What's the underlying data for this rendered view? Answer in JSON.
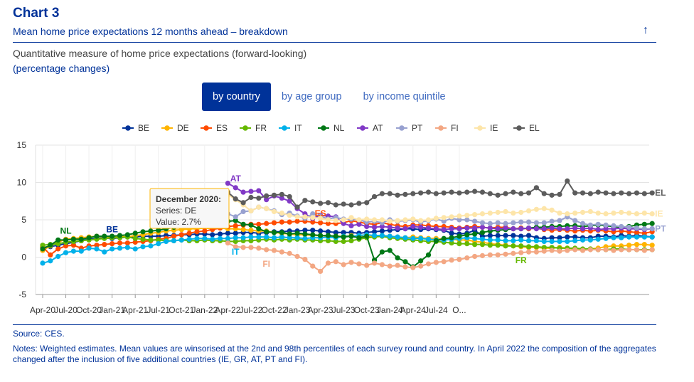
{
  "header": {
    "chart_number": "Chart 3",
    "title": "Mean home price expectations 12 months ahead – breakdown",
    "subtitle": "Quantitative measure of home price expectations (forward-looking)",
    "unit": "(percentage changes)"
  },
  "tabs": [
    {
      "label": "by country",
      "active": true
    },
    {
      "label": "by age group",
      "active": false
    },
    {
      "label": "by income quintile",
      "active": false
    }
  ],
  "tooltip": {
    "title": "December 2020:",
    "series_line": "Series: DE",
    "value_line": "Value: 2.7%"
  },
  "footer": {
    "source": "Source: CES.",
    "notes": "Notes: Weighted estimates. Mean values are winsorised at the 2nd and 98th percentiles of each survey round and country. In April 2022 the composition of the aggregates changed after the inclusion of five additional countries (IE, GR, AT, PT and FI)."
  },
  "chart_data": {
    "type": "line",
    "title": "",
    "xlabel": "",
    "ylabel": "",
    "ylim": [
      -5,
      15
    ],
    "yticks": [
      -5,
      0,
      5,
      10,
      15
    ],
    "grid": true,
    "legend_position": "top",
    "x_start": "Apr-20",
    "x_tick_labels": [
      "Apr-20",
      "Jul-20",
      "Oct-20",
      "Jan-21",
      "Apr-21",
      "Jul-21",
      "Oct-21",
      "Jan-22",
      "Apr-22",
      "Jul-22",
      "Oct-22",
      "Jan-23",
      "Apr-23",
      "Jul-23",
      "Oct-23",
      "Jan-24",
      "Apr-24",
      "Jul-24",
      "O..."
    ],
    "x_tick_step_months": 3,
    "series": [
      {
        "name": "BE",
        "color": "#003299",
        "start": 0,
        "label": "BE",
        "label_at": 9,
        "values": [
          1.3,
          1.4,
          1.6,
          1.8,
          2.0,
          2.2,
          2.4,
          2.5,
          2.6,
          2.5,
          2.6,
          2.7,
          2.7,
          2.8,
          2.8,
          2.8,
          2.9,
          2.9,
          3.0,
          3.0,
          3.1,
          3.1,
          3.0,
          3.1,
          3.2,
          3.2,
          3.3,
          3.3,
          3.2,
          3.3,
          3.4,
          3.4,
          3.5,
          3.5,
          3.6,
          3.6,
          3.5,
          3.4,
          3.3,
          3.3,
          3.3,
          3.2,
          3.3,
          3.4,
          3.5,
          3.6,
          3.7,
          3.8,
          3.8,
          3.7,
          3.8,
          3.7,
          3.6,
          3.2,
          3.1,
          3.2,
          3.6,
          2.8,
          2.9,
          2.9,
          2.9,
          2.9,
          2.8,
          2.9,
          2.6,
          2.5,
          2.6,
          2.6,
          2.7,
          2.7,
          2.6,
          2.6,
          2.8,
          2.8,
          2.7,
          2.9,
          2.8,
          2.9,
          2.8,
          2.7
        ]
      },
      {
        "name": "DE",
        "color": "#ffb400",
        "start": 0,
        "values": [
          0.9,
          1.5,
          2.0,
          2.4,
          2.5,
          2.6,
          2.7,
          2.8,
          2.7,
          2.7,
          2.8,
          2.7,
          2.9,
          3.0,
          3.2,
          3.3,
          3.5,
          3.6,
          3.7,
          3.8,
          3.8,
          3.9,
          3.8,
          3.9,
          3.8,
          3.8,
          3.7,
          3.6,
          3.5,
          3.5,
          3.3,
          3.2,
          3.1,
          3.0,
          3.0,
          2.9,
          2.9,
          2.8,
          2.8,
          2.8,
          2.9,
          2.8,
          2.7,
          2.8,
          2.9,
          2.8,
          2.7,
          2.6,
          2.7,
          2.6,
          2.5,
          2.5,
          2.4,
          2.4,
          2.3,
          2.3,
          2.1,
          2.0,
          1.8,
          1.7,
          1.6,
          1.5,
          1.4,
          1.3,
          1.3,
          1.2,
          1.2,
          1.3,
          1.2,
          1.1,
          1.0,
          1.1,
          1.2,
          1.4,
          1.5,
          1.5,
          1.6,
          1.7,
          1.7,
          1.6
        ]
      },
      {
        "name": "ES",
        "color": "#ff4b00",
        "start": 0,
        "label": "ES",
        "label_at": 36,
        "values": [
          1.4,
          0.3,
          1.1,
          1.5,
          1.6,
          1.2,
          1.5,
          1.6,
          1.7,
          1.8,
          1.9,
          1.9,
          2.0,
          2.1,
          2.2,
          2.4,
          2.5,
          2.8,
          3.0,
          3.2,
          3.4,
          3.5,
          3.7,
          3.9,
          4.1,
          4.2,
          4.3,
          4.4,
          4.4,
          4.5,
          4.6,
          4.7,
          4.7,
          4.8,
          4.8,
          4.7,
          4.6,
          4.5,
          4.5,
          4.6,
          4.9,
          4.7,
          4.5,
          4.4,
          4.6,
          4.4,
          4.2,
          4.1,
          4.3,
          4.3,
          4.2,
          4.1,
          4.1,
          4.0,
          3.9,
          4.0,
          4.1,
          4.0,
          3.9,
          4.0,
          4.0,
          3.8,
          3.9,
          3.8,
          3.9,
          3.7,
          3.6,
          3.7,
          3.6,
          3.5,
          3.6,
          3.5,
          3.6,
          3.5,
          3.4,
          3.5,
          3.4,
          3.3,
          3.2,
          3.4
        ]
      },
      {
        "name": "FR",
        "color": "#65b800",
        "start": 0,
        "label": "FR",
        "label_at": 62,
        "values": [
          1.6,
          1.7,
          1.8,
          2.0,
          2.1,
          2.2,
          2.3,
          2.4,
          2.5,
          2.6,
          2.6,
          2.7,
          2.5,
          2.4,
          2.3,
          2.3,
          2.2,
          2.2,
          2.3,
          2.2,
          2.2,
          2.3,
          2.2,
          2.2,
          2.1,
          2.1,
          2.2,
          2.2,
          2.3,
          2.4,
          2.3,
          2.4,
          2.3,
          2.4,
          2.3,
          2.3,
          2.2,
          2.2,
          2.1,
          2.1,
          2.2,
          2.4,
          2.6,
          2.7,
          2.8,
          2.6,
          2.5,
          2.4,
          2.3,
          2.2,
          2.1,
          2.1,
          2.0,
          1.9,
          1.8,
          1.8,
          1.7,
          1.7,
          1.6,
          1.6,
          1.5,
          1.5,
          1.5,
          1.4,
          1.4,
          1.3,
          1.3,
          1.2,
          1.2,
          1.2,
          1.1,
          1.1,
          1.0,
          1.0,
          1.1,
          1.1,
          1.0,
          1.0,
          1.0,
          1.0
        ]
      },
      {
        "name": "IT",
        "color": "#00b1ea",
        "start": 0,
        "label": "IT",
        "label_at": 25,
        "values": [
          -0.8,
          -0.5,
          0.1,
          0.6,
          0.8,
          0.8,
          1.2,
          1.1,
          0.7,
          1.1,
          1.2,
          1.3,
          1.1,
          1.4,
          1.5,
          1.8,
          2.1,
          2.2,
          2.3,
          2.4,
          2.5,
          2.5,
          2.4,
          2.5,
          2.5,
          2.6,
          2.6,
          2.7,
          2.7,
          2.7,
          2.6,
          2.7,
          2.6,
          2.6,
          2.5,
          2.6,
          2.6,
          2.7,
          2.6,
          2.8,
          2.8,
          2.9,
          3.0,
          2.9,
          2.9,
          2.8,
          2.7,
          2.6,
          2.5,
          2.5,
          2.4,
          2.3,
          2.3,
          2.4,
          2.5,
          2.6,
          2.5,
          2.4,
          2.3,
          2.3,
          2.2,
          2.2,
          2.3,
          2.2,
          2.2,
          2.1,
          2.1,
          2.1,
          2.1,
          2.2,
          2.3,
          2.3,
          2.4,
          2.5,
          2.6,
          2.6,
          2.7,
          2.7,
          2.7,
          2.7
        ]
      },
      {
        "name": "NL",
        "color": "#007816",
        "start": 0,
        "label": "NL",
        "label_at": 3,
        "values": [
          1.1,
          1.6,
          2.3,
          2.3,
          2.4,
          2.4,
          2.6,
          2.8,
          2.8,
          2.8,
          2.9,
          3.0,
          3.2,
          3.4,
          3.5,
          3.6,
          3.8,
          4.0,
          4.2,
          4.4,
          4.6,
          5.4,
          4.8,
          4.4,
          4.8,
          4.9,
          4.4,
          4.3,
          3.8,
          3.4,
          3.3,
          3.3,
          3.1,
          3.2,
          3.1,
          3.0,
          2.9,
          2.9,
          2.8,
          2.7,
          2.8,
          2.6,
          2.8,
          -0.4,
          0.7,
          0.9,
          -0.1,
          -0.6,
          -1.3,
          -0.5,
          0.3,
          2.2,
          2.5,
          2.6,
          2.8,
          3.0,
          3.1,
          3.3,
          3.5,
          3.6,
          3.7,
          3.8,
          3.8,
          3.9,
          4.0,
          4.0,
          4.1,
          4.1,
          4.2,
          4.2,
          4.1,
          4.2,
          4.3,
          4.2,
          4.1,
          4.0,
          4.1,
          4.3,
          4.4,
          4.5
        ]
      },
      {
        "name": "AT",
        "color": "#8139c6",
        "start": 24,
        "label": "AT",
        "label_at": 25,
        "values": [
          9.9,
          9.3,
          8.7,
          8.8,
          8.9,
          7.7,
          8.2,
          7.9,
          7.5,
          6.5,
          5.8,
          5.2,
          5.6,
          5.5,
          5.4,
          4.5,
          4.2,
          4.4,
          4.1,
          4.0,
          4.1,
          4.0,
          3.9,
          3.8,
          4.1,
          4.0,
          3.9,
          3.8,
          3.7,
          3.8,
          3.8,
          3.9,
          3.9,
          4.0,
          3.9,
          3.8,
          3.9,
          3.8,
          3.8,
          3.9,
          3.8,
          3.8,
          3.9,
          3.8,
          3.8,
          3.9,
          3.8,
          3.9,
          3.7,
          3.8,
          3.8,
          3.9,
          3.8,
          3.8,
          3.7,
          3.8
        ]
      },
      {
        "name": "PT",
        "color": "#98a1d0",
        "start": 24,
        "label": "PT",
        "label_at": 79,
        "values": [
          5.8,
          5.4,
          6.1,
          6.2,
          6.7,
          6.5,
          6.2,
          5.7,
          5.9,
          5.5,
          5.2,
          5.8,
          5.5,
          5.1,
          5.3,
          5.1,
          5.1,
          5.0,
          4.7,
          4.8,
          4.6,
          5.0,
          4.8,
          4.9,
          5.0,
          4.7,
          4.9,
          5.1,
          4.8,
          5.2,
          5.0,
          5.0,
          4.8,
          4.6,
          4.5,
          4.6,
          4.5,
          4.6,
          4.7,
          4.7,
          4.6,
          4.6,
          4.8,
          4.9,
          5.4,
          4.9,
          4.5,
          4.3,
          4.4,
          4.3,
          4.2,
          4.1,
          4.0,
          3.9,
          3.8,
          3.8
        ]
      },
      {
        "name": "FI",
        "color": "#f3a783",
        "start": 24,
        "label": "FI",
        "label_at": 29,
        "values": [
          1.9,
          1.4,
          1.3,
          1.3,
          1.2,
          1.0,
          0.9,
          0.7,
          0.5,
          0.1,
          -0.3,
          -1.2,
          -1.9,
          -0.8,
          -0.6,
          -1.0,
          -0.7,
          -0.9,
          -1.1,
          -0.8,
          -1.0,
          -1.2,
          -1.1,
          -1.3,
          -1.4,
          -1.2,
          -0.9,
          -0.7,
          -0.6,
          -0.4,
          -0.3,
          -0.1,
          0.1,
          0.2,
          0.3,
          0.3,
          0.4,
          0.5,
          0.6,
          0.7,
          0.7,
          0.8,
          0.9,
          0.8,
          0.9,
          1.0,
          0.9,
          1.0,
          1.0,
          1.0,
          0.9,
          1.0,
          1.0,
          1.0,
          0.9,
          1.0
        ]
      },
      {
        "name": "IE",
        "color": "#fde5a9",
        "start": 24,
        "label": "IE",
        "label_at": 79,
        "values": [
          8.4,
          7.7,
          7.0,
          6.2,
          6.7,
          6.5,
          6.1,
          5.9,
          5.6,
          5.4,
          5.4,
          5.3,
          5.2,
          5.0,
          4.9,
          5.0,
          5.3,
          5.0,
          5.1,
          5.0,
          5.0,
          4.8,
          4.9,
          5.0,
          5.1,
          4.9,
          5.0,
          5.2,
          5.3,
          5.4,
          5.5,
          5.6,
          5.7,
          5.8,
          5.9,
          6.0,
          6.1,
          5.9,
          6.0,
          6.2,
          6.4,
          6.5,
          6.3,
          5.9,
          5.8,
          5.9,
          6.0,
          6.1,
          5.9,
          5.8,
          5.9,
          6.0,
          5.9,
          5.8,
          5.9,
          5.8
        ]
      },
      {
        "name": "EL",
        "color": "#5c5c5c",
        "start": 24,
        "label": "EL",
        "label_at": 79,
        "values": [
          8.7,
          7.8,
          7.3,
          8.0,
          7.9,
          8.2,
          8.3,
          8.4,
          8.1,
          6.7,
          7.6,
          7.4,
          7.2,
          7.3,
          7.0,
          7.1,
          7.0,
          7.2,
          7.3,
          8.1,
          8.5,
          8.5,
          8.3,
          8.4,
          8.5,
          8.6,
          8.7,
          8.5,
          8.6,
          8.7,
          8.6,
          8.7,
          8.8,
          8.7,
          8.5,
          8.3,
          8.5,
          8.7,
          8.5,
          8.6,
          9.3,
          8.5,
          8.3,
          8.4,
          10.2,
          8.6,
          8.6,
          8.5,
          8.7,
          8.6,
          8.5,
          8.6,
          8.5,
          8.6,
          8.5,
          8.6
        ]
      }
    ]
  }
}
